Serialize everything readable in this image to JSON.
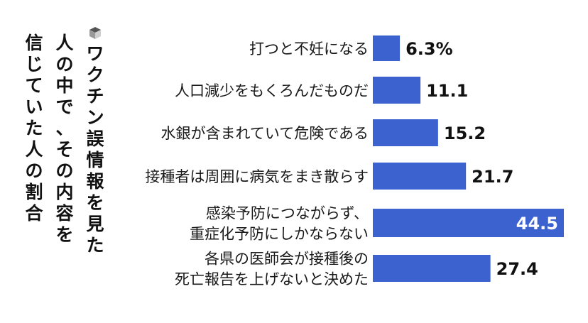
{
  "chart_data": {
    "type": "bar",
    "orientation": "horizontal",
    "title": "ワクチン誤情報を見た人の中で、その内容を信じていた人の割合",
    "title_columns": [
      "ワクチン誤情報を見た",
      "人の中で、その内容を",
      "信じていた人の割合"
    ],
    "categories": [
      [
        "打つと不妊になる"
      ],
      [
        "人口減少をもくろんだものだ"
      ],
      [
        "水銀が含まれていて危険である"
      ],
      [
        "接種者は周囲に病気をまき散らす"
      ],
      [
        "感染予防につながらず、",
        "重症化予防にしかならない"
      ],
      [
        "各県の医師会が接種後の",
        "死亡報告を上げないと決めた"
      ]
    ],
    "values": [
      6.3,
      11.1,
      15.2,
      21.7,
      44.5,
      27.4
    ],
    "value_labels": [
      "6.3%",
      "11.1",
      "15.2",
      "21.7",
      "44.5",
      "27.4"
    ],
    "value_label_inside": [
      false,
      false,
      false,
      false,
      true,
      false
    ],
    "xlim": [
      0,
      44.5
    ],
    "grid": false,
    "colors": {
      "bar": "#3c62cf",
      "text": "#111111",
      "label_inside": "#ffffff",
      "bullet_top": "#555555",
      "bullet_left": "#9a9a9a",
      "bullet_right": "#cfcfcf"
    }
  }
}
